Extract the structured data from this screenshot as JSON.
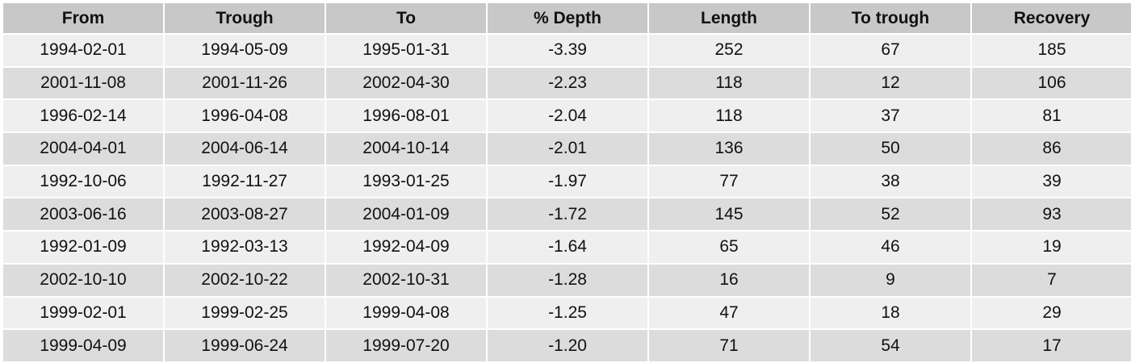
{
  "chart_data": {
    "type": "table",
    "columns": [
      "From",
      "Trough",
      "To",
      "% Depth",
      "Length",
      "To trough",
      "Recovery"
    ],
    "rows": [
      [
        "1994-02-01",
        "1994-05-09",
        "1995-01-31",
        "-3.39",
        "252",
        "67",
        "185"
      ],
      [
        "2001-11-08",
        "2001-11-26",
        "2002-04-30",
        "-2.23",
        "118",
        "12",
        "106"
      ],
      [
        "1996-02-14",
        "1996-04-08",
        "1996-08-01",
        "-2.04",
        "118",
        "37",
        "81"
      ],
      [
        "2004-04-01",
        "2004-06-14",
        "2004-10-14",
        "-2.01",
        "136",
        "50",
        "86"
      ],
      [
        "1992-10-06",
        "1992-11-27",
        "1993-01-25",
        "-1.97",
        "77",
        "38",
        "39"
      ],
      [
        "2003-06-16",
        "2003-08-27",
        "2004-01-09",
        "-1.72",
        "145",
        "52",
        "93"
      ],
      [
        "1992-01-09",
        "1992-03-13",
        "1992-04-09",
        "-1.64",
        "65",
        "46",
        "19"
      ],
      [
        "2002-10-10",
        "2002-10-22",
        "2002-10-31",
        "-1.28",
        "16",
        "9",
        "7"
      ],
      [
        "1999-02-01",
        "1999-02-25",
        "1999-04-08",
        "-1.25",
        "47",
        "18",
        "29"
      ],
      [
        "1999-04-09",
        "1999-06-24",
        "1999-07-20",
        "-1.20",
        "71",
        "54",
        "17"
      ]
    ]
  },
  "colors": {
    "header_bg": "#c8c8c8",
    "row_odd_bg": "#efefef",
    "row_even_bg": "#dcdcdc",
    "text": "#111111"
  }
}
